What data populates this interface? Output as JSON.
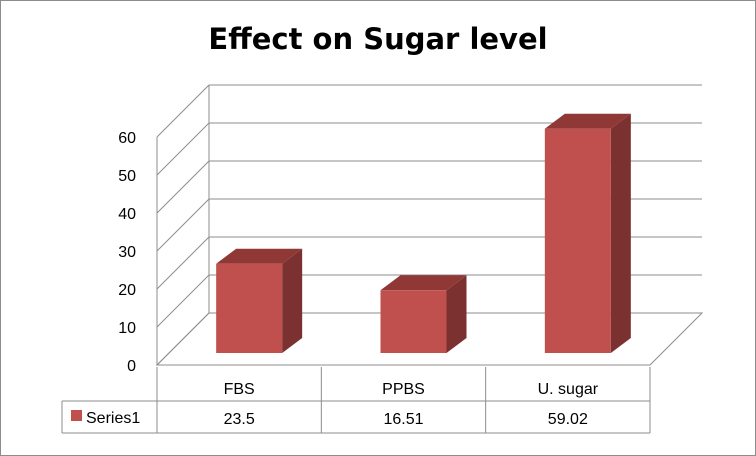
{
  "chart_data": {
    "type": "bar",
    "title": "Effect on Sugar level",
    "categories": [
      "FBS",
      "PPBS",
      "U. sugar"
    ],
    "series": [
      {
        "name": "Series1",
        "values": [
          23.5,
          16.51,
          59.02
        ]
      }
    ],
    "data_table": {
      "series_label": "Series1",
      "cells": [
        "23.5",
        "16.51",
        "59.02"
      ]
    },
    "ylim": [
      0,
      60
    ],
    "yticks": [
      0,
      10,
      20,
      30,
      40,
      50,
      60
    ],
    "grid": true,
    "style": "3d-column",
    "legend": "in data table",
    "colors": {
      "bar_front": "#c0504d",
      "bar_side": "#7b3130",
      "bar_top": "#8f3836",
      "grid": "#8c8c8c"
    }
  }
}
